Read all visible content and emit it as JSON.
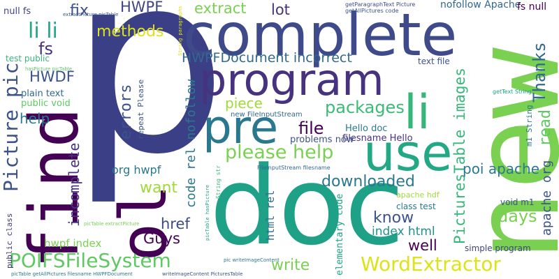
{
  "words": [
    {
      "text": "p",
      "color": "#3b3f86",
      "rot": false
    },
    {
      "text": "new",
      "color": "#7ad151",
      "rot": true
    },
    {
      "text": "doc",
      "color": "#1fa187",
      "rot": false
    },
    {
      "text": "complete",
      "color": "#3e4a89",
      "rot": false
    },
    {
      "text": "program",
      "color": "#46327e",
      "rot": false
    },
    {
      "text": "find",
      "color": "#440154",
      "rot": true
    },
    {
      "text": "pre",
      "color": "#2a788e",
      "rot": false
    },
    {
      "text": "use",
      "color": "#22a884",
      "rot": false
    },
    {
      "text": "li",
      "color": "#35b779",
      "rot": false
    },
    {
      "text": "ol",
      "color": "#440154",
      "rot": true
    },
    {
      "text": "Picture pic",
      "color": "#3b528b",
      "rot": true
    },
    {
      "text": "please help",
      "color": "#7ad151",
      "rot": false
    },
    {
      "text": "POIFSFileSystem",
      "color": "#5ec962",
      "rot": false
    },
    {
      "text": "WordExtractor",
      "color": "#dde318",
      "rot": false
    },
    {
      "text": "li li",
      "color": "#22a884",
      "rot": false
    },
    {
      "text": "incomplete",
      "color": "#46327e",
      "rot": true
    },
    {
      "text": "HWPFDocument incorrect",
      "color": "#31688e",
      "rot": false
    },
    {
      "text": "packages",
      "color": "#3bbb75",
      "rot": false
    },
    {
      "text": "downloaded",
      "color": "#2a788e",
      "rot": false
    },
    {
      "text": "PicturesTable images",
      "color": "#35b779",
      "rot": true
    },
    {
      "text": "Thanks",
      "color": "#31688e",
      "rot": true
    },
    {
      "text": "read",
      "color": "#5ec962",
      "rot": true
    },
    {
      "text": "poi apache",
      "color": "#2a788e",
      "rot": false
    },
    {
      "text": "extract",
      "color": "#7ad151",
      "rot": false
    },
    {
      "text": "lot",
      "color": "#46327e",
      "rot": false
    },
    {
      "text": "methods",
      "color": "#dde318",
      "rot": false
    },
    {
      "text": "HWPF",
      "color": "#414487",
      "rot": false
    },
    {
      "text": "fix",
      "color": "#3b528b",
      "rot": false
    },
    {
      "text": "fs",
      "color": "#46327e",
      "rot": false
    },
    {
      "text": "HWDF",
      "color": "#3b528b",
      "rot": false
    },
    {
      "text": "help",
      "color": "#2a788e",
      "rot": false
    },
    {
      "text": "errors",
      "color": "#3b528b",
      "rot": true
    },
    {
      "text": "piece",
      "color": "#a0da39",
      "rot": false
    },
    {
      "text": "file",
      "color": "#440154",
      "rot": false
    },
    {
      "text": "want",
      "color": "#a0da39",
      "rot": false
    },
    {
      "text": "href",
      "color": "#3e4a89",
      "rot": false
    },
    {
      "text": "Guys",
      "color": "#440154",
      "rot": false
    },
    {
      "text": "know",
      "color": "#3b528b",
      "rot": false
    },
    {
      "text": "days",
      "color": "#7ad151",
      "rot": false
    },
    {
      "text": "well",
      "color": "#440154",
      "rot": false
    },
    {
      "text": "write",
      "color": "#7ad151",
      "rot": false
    },
    {
      "text": "apache org",
      "color": "#3b528b",
      "rot": true
    },
    {
      "text": "code rel nofollow",
      "color": "#2a788e",
      "rot": true
    },
    {
      "text": "html rel",
      "color": "#31688e",
      "rot": true
    },
    {
      "text": "index html",
      "color": "#21918c",
      "rot": false
    },
    {
      "text": "org hwpf",
      "color": "#2a788e",
      "rot": false
    },
    {
      "text": "hwpf index",
      "color": "#7ad151",
      "rot": false
    },
    {
      "text": "Hello doc",
      "color": "#2a788e",
      "rot": false
    },
    {
      "text": "filesname Hello",
      "color": "#46327e",
      "rot": false
    },
    {
      "text": "problems now",
      "color": "#3b528b",
      "rot": false
    },
    {
      "text": "nofollow Apache",
      "color": "#31688e",
      "rot": false
    },
    {
      "text": "fs null",
      "color": "#440154",
      "rot": false
    },
    {
      "text": "null fs",
      "color": "#414487",
      "rot": false
    },
    {
      "text": "test public",
      "color": "#35b779",
      "rot": false
    },
    {
      "text": "plain text",
      "color": "#31688e",
      "rot": false
    },
    {
      "text": "public void",
      "color": "#5ec962",
      "rot": false
    },
    {
      "text": "text file",
      "color": "#3b528b",
      "rot": false
    },
    {
      "text": "void m1",
      "color": "#3b528b",
      "rot": false
    },
    {
      "text": "apache hdf",
      "color": "#a0da39",
      "rot": false
    },
    {
      "text": "class test",
      "color": "#2a788e",
      "rot": false
    },
    {
      "text": "elementary code",
      "color": "#1fa187",
      "rot": true
    },
    {
      "text": "simple program",
      "color": "#414487",
      "rot": false
    },
    {
      "text": "m1 String",
      "color": "#2a788e",
      "rot": true
    },
    {
      "text": "repeat Please",
      "color": "#3b528b",
      "rot": true
    },
    {
      "text": "public class",
      "color": "#46327e",
      "rot": true
    },
    {
      "text": "new FileInputStream",
      "color": "#31688e",
      "rot": false
    },
    {
      "text": "getText String",
      "color": "#1fa187",
      "rot": false
    },
    {
      "text": "FileInputStream filesname",
      "color": "#31688e",
      "rot": false
    },
    {
      "text": "String str",
      "color": "#35b779",
      "rot": true
    },
    {
      "text": "getParagraphText Picture",
      "color": "#3e4a89",
      "rot": false
    },
    {
      "text": "getAllPictures code",
      "color": "#3b528b",
      "rot": false
    },
    {
      "text": "extractPicture picTable",
      "color": "#3b528b",
      "rot": false
    },
    {
      "text": "hasPicture picTable",
      "color": "#5ec962",
      "rot": false
    },
    {
      "text": "picTable extractPicture",
      "color": "#7ad151",
      "rot": false
    },
    {
      "text": "picTable getAllPictures filesname HWPFDocument",
      "color": "#2a788e",
      "rot": false
    },
    {
      "text": "writeImageContent PicturesTable",
      "color": "#3b528b",
      "rot": false
    },
    {
      "text": "pic writeImageContent",
      "color": "#2a788e",
      "rot": false
    },
    {
      "text": "picTable hasPicture",
      "color": "#1fa187",
      "rot": true
    },
    {
      "text": "String paragraphs",
      "color": "#dde318",
      "rot": true
    }
  ]
}
